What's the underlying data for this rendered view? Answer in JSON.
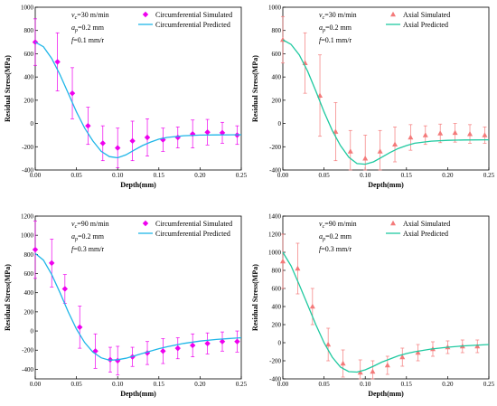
{
  "chart_data": [
    {
      "type": "scatter",
      "xlabel": "Depth(mm)",
      "ylabel": "Residual Stress(MPa)",
      "xlim": [
        0,
        0.25
      ],
      "ylim": [
        -400,
        1000
      ],
      "x_ticks": [
        "0.00",
        "0.05",
        "0.10",
        "0.15",
        "0.20",
        "0.25"
      ],
      "y_ticks": [
        "-400",
        "-200",
        "0",
        "200",
        "400",
        "600",
        "800",
        "1000"
      ],
      "annotations": [
        "v",
        "c",
        "=30 m/min",
        "a",
        "p",
        "=0.2 mm",
        "f",
        "=0.1 mm/r"
      ],
      "legend_position": "top-right",
      "series": [
        {
          "name": "Circumferential Simulated",
          "kind": "points",
          "marker": "diamond",
          "color": "#ee00ee",
          "x": [
            0.0,
            0.027,
            0.045,
            0.064,
            0.082,
            0.1,
            0.118,
            0.136,
            0.155,
            0.173,
            0.191,
            0.209,
            0.227,
            0.245
          ],
          "y": [
            700,
            530,
            260,
            -20,
            -170,
            -210,
            -150,
            -120,
            -140,
            -120,
            -90,
            -75,
            -80,
            -100
          ],
          "err": [
            200,
            250,
            220,
            160,
            150,
            170,
            170,
            160,
            100,
            90,
            120,
            110,
            90,
            80
          ]
        },
        {
          "name": "Circumferential Predicted",
          "kind": "line",
          "color": "#1fb6e8",
          "x": [
            0.0,
            0.01,
            0.02,
            0.03,
            0.04,
            0.05,
            0.06,
            0.07,
            0.08,
            0.09,
            0.1,
            0.11,
            0.12,
            0.13,
            0.14,
            0.15,
            0.16,
            0.18,
            0.2,
            0.22,
            0.25
          ],
          "y": [
            700,
            660,
            560,
            420,
            260,
            100,
            -40,
            -150,
            -240,
            -285,
            -295,
            -270,
            -230,
            -190,
            -160,
            -135,
            -120,
            -105,
            -100,
            -98,
            -97
          ]
        }
      ]
    },
    {
      "type": "scatter",
      "xlabel": "Depth(mm)",
      "ylabel": "Residual Stress(MPa)",
      "xlim": [
        0,
        0.25
      ],
      "ylim": [
        -400,
        1000
      ],
      "x_ticks": [
        "0.00",
        "0.05",
        "0.10",
        "0.15",
        "0.20",
        "0.25"
      ],
      "y_ticks": [
        "-400",
        "-200",
        "0",
        "200",
        "400",
        "600",
        "800",
        "1000"
      ],
      "annotations": [
        "v",
        "c",
        "=30 m/min",
        "a",
        "p",
        "=0.2 mm",
        "f",
        "=0.1 mm/r"
      ],
      "legend_position": "top-right",
      "series": [
        {
          "name": "Axial Simulated",
          "kind": "points",
          "marker": "triangle",
          "color": "#f47a7a",
          "x": [
            0.0,
            0.027,
            0.045,
            0.064,
            0.082,
            0.1,
            0.118,
            0.136,
            0.155,
            0.173,
            0.191,
            0.209,
            0.227,
            0.245
          ],
          "y": [
            720,
            520,
            240,
            -70,
            -240,
            -300,
            -240,
            -180,
            -120,
            -100,
            -85,
            -80,
            -90,
            -100
          ],
          "err": [
            200,
            260,
            350,
            250,
            180,
            200,
            180,
            150,
            110,
            80,
            80,
            80,
            80,
            70
          ]
        },
        {
          "name": "Axial Predicted",
          "kind": "line",
          "color": "#1fc9a0",
          "x": [
            0.0,
            0.01,
            0.02,
            0.03,
            0.04,
            0.05,
            0.06,
            0.07,
            0.08,
            0.09,
            0.1,
            0.11,
            0.12,
            0.13,
            0.14,
            0.15,
            0.16,
            0.18,
            0.2,
            0.22,
            0.25
          ],
          "y": [
            720,
            680,
            590,
            450,
            280,
            100,
            -60,
            -190,
            -290,
            -345,
            -350,
            -330,
            -290,
            -250,
            -215,
            -190,
            -170,
            -152,
            -145,
            -142,
            -140
          ]
        }
      ]
    },
    {
      "type": "scatter",
      "xlabel": "Depth(mm)",
      "ylabel": "Residual Stress(MPa)",
      "xlim": [
        0,
        0.25
      ],
      "ylim": [
        -500,
        1200
      ],
      "x_ticks": [
        "0.00",
        "0.05",
        "0.10",
        "0.15",
        "0.20",
        "0.25"
      ],
      "y_ticks": [
        "-400",
        "-200",
        "0",
        "200",
        "400",
        "600",
        "800",
        "1000",
        "1200"
      ],
      "annotations": [
        "v",
        "c",
        "=90 m/min",
        "a",
        "p",
        "=0.2 mm",
        "f",
        "=0.3 mm/r"
      ],
      "legend_position": "top-right",
      "series": [
        {
          "name": "Circumferential Simulated",
          "kind": "points",
          "marker": "diamond",
          "color": "#ee00ee",
          "x": [
            0.0,
            0.02,
            0.036,
            0.054,
            0.073,
            0.091,
            0.1,
            0.118,
            0.136,
            0.155,
            0.173,
            0.191,
            0.209,
            0.227,
            0.245
          ],
          "y": [
            850,
            710,
            440,
            40,
            -210,
            -300,
            -310,
            -270,
            -230,
            -210,
            -180,
            -150,
            -130,
            -110,
            -110
          ],
          "err": [
            300,
            250,
            150,
            220,
            180,
            130,
            150,
            100,
            120,
            130,
            110,
            120,
            110,
            100,
            110
          ]
        },
        {
          "name": "Circumferential Predicted",
          "kind": "line",
          "color": "#1fb6e8",
          "x": [
            0.0,
            0.01,
            0.02,
            0.03,
            0.04,
            0.05,
            0.06,
            0.07,
            0.08,
            0.09,
            0.1,
            0.11,
            0.12,
            0.13,
            0.14,
            0.15,
            0.16,
            0.18,
            0.2,
            0.22,
            0.25
          ],
          "y": [
            810,
            740,
            590,
            400,
            200,
            20,
            -120,
            -220,
            -280,
            -305,
            -300,
            -285,
            -260,
            -235,
            -210,
            -185,
            -165,
            -130,
            -105,
            -88,
            -70
          ]
        }
      ]
    },
    {
      "type": "scatter",
      "xlabel": "Depth(mm)",
      "ylabel": "Residual Stress(MPa)",
      "xlim": [
        0,
        0.25
      ],
      "ylim": [
        -400,
        1400
      ],
      "x_ticks": [
        "0.00",
        "0.05",
        "0.10",
        "0.15",
        "0.20",
        "0.25"
      ],
      "y_ticks": [
        "-400",
        "-200",
        "0",
        "200",
        "400",
        "600",
        "800",
        "1000",
        "1200",
        "1400"
      ],
      "annotations": [
        "v",
        "c",
        "=90 m/min",
        "a",
        "p",
        "=0.2 mm",
        "f",
        "=0.3 mm/r"
      ],
      "legend_position": "top-right",
      "series": [
        {
          "name": "Axial Simulated",
          "kind": "points",
          "marker": "triangle",
          "color": "#f47a7a",
          "x": [
            0.0,
            0.018,
            0.036,
            0.055,
            0.073,
            0.094,
            0.109,
            0.127,
            0.145,
            0.164,
            0.182,
            0.2,
            0.218,
            0.236
          ],
          "y": [
            900,
            820,
            400,
            -20,
            -230,
            -330,
            -320,
            -250,
            -160,
            -110,
            -70,
            -50,
            -40,
            -40
          ],
          "err": [
            300,
            280,
            200,
            180,
            150,
            140,
            120,
            100,
            100,
            90,
            80,
            70,
            70,
            70
          ]
        },
        {
          "name": "Axial Predicted",
          "kind": "line",
          "color": "#1fc9a0",
          "x": [
            0.0,
            0.01,
            0.02,
            0.03,
            0.04,
            0.05,
            0.06,
            0.07,
            0.08,
            0.09,
            0.1,
            0.11,
            0.12,
            0.13,
            0.14,
            0.15,
            0.16,
            0.18,
            0.2,
            0.22,
            0.25
          ],
          "y": [
            1000,
            850,
            640,
            420,
            200,
            0,
            -160,
            -270,
            -320,
            -325,
            -300,
            -260,
            -215,
            -180,
            -145,
            -120,
            -100,
            -70,
            -50,
            -35,
            -20
          ]
        }
      ]
    }
  ]
}
